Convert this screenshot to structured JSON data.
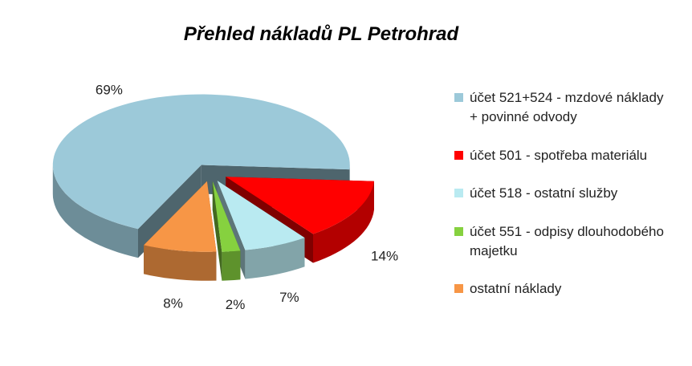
{
  "chart_data": {
    "type": "pie3d",
    "title": "Přehled nákladů PL Petrohrad",
    "categories": [
      "účet 521+524 - mzdové náklady + povinné odvody",
      "účet 501 - spotřeba materiálu",
      "účet 518 - ostatní služby",
      "účet 551 - odpisy dlouhodobého majetku",
      "ostatní náklady"
    ],
    "values": [
      69,
      14,
      7,
      2,
      8
    ],
    "value_labels": [
      "69%",
      "14%",
      "7%",
      "2%",
      "8%"
    ],
    "colors": [
      "#9cc9d9",
      "#ff0000",
      "#b9eaf1",
      "#86d13f",
      "#f79646"
    ],
    "legend": "right"
  }
}
